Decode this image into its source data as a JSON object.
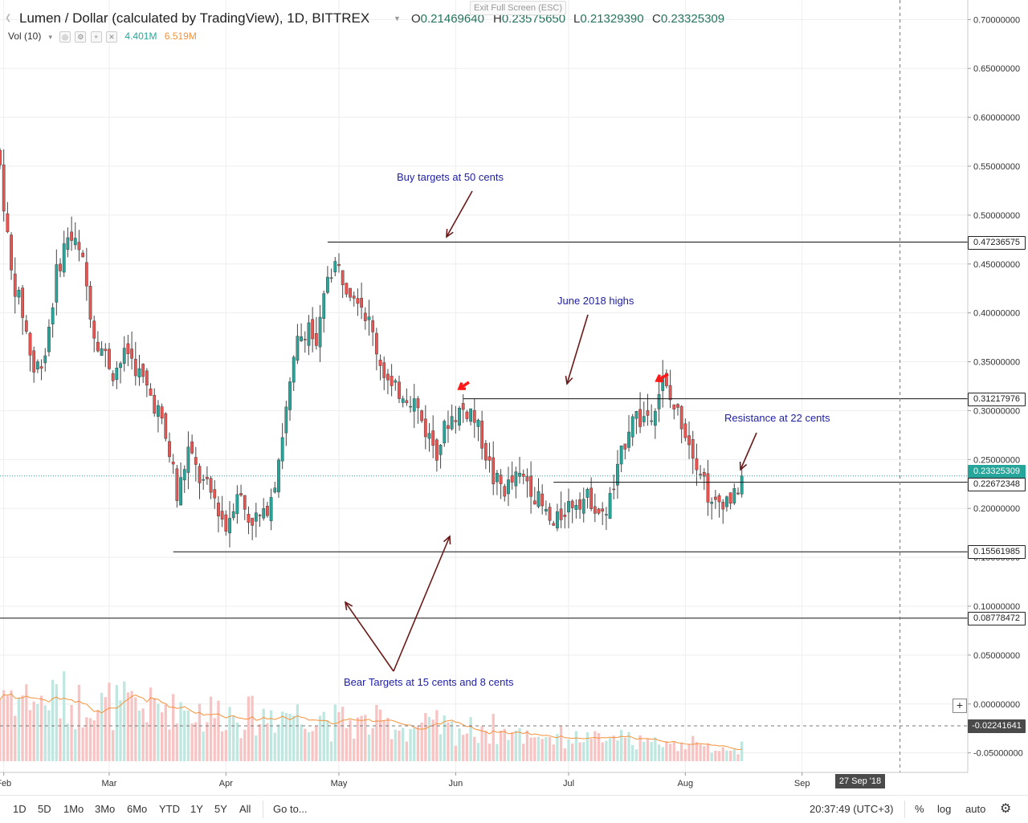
{
  "header": {
    "title": "Lumen / Dollar (calculated by TradingView), 1D, BITTREX",
    "ohlc": [
      {
        "k": "O",
        "v": "0.21469640"
      },
      {
        "k": "H",
        "v": "0.23575650"
      },
      {
        "k": "L",
        "v": "0.21329390"
      },
      {
        "k": "C",
        "v": "0.23325309"
      }
    ],
    "vol_label": "Vol (10)",
    "vol_value": "4.401M",
    "vol_ma": "6.519M",
    "exit_fullscreen": "Exit Full Screen (ESC)"
  },
  "colors": {
    "up": "#26a69a",
    "down": "#ef5350",
    "wick": "#444444",
    "annotation": "#1e1ea5",
    "arrow": "#6b1a1a",
    "marker": "#ff1a1a",
    "vol_ma": "#f6923a"
  },
  "price_labels": [
    {
      "value": "0.47236575",
      "bg": "#ffffff",
      "fg": "#222222",
      "border": "#222222"
    },
    {
      "value": "0.31217976",
      "bg": "#ffffff",
      "fg": "#222222",
      "border": "#222222"
    },
    {
      "value": "0.23325309",
      "bg": "#26a69a",
      "fg": "#ffffff",
      "border": "#26a69a"
    },
    {
      "value": "0.22672348",
      "bg": "#ffffff",
      "fg": "#222222",
      "border": "#222222"
    },
    {
      "value": "0.15561985",
      "bg": "#ffffff",
      "fg": "#222222",
      "border": "#222222"
    },
    {
      "value": "0.08778472",
      "bg": "#ffffff",
      "fg": "#222222",
      "border": "#222222"
    },
    {
      "value": "-0.02241641",
      "bg": "#4a4a4a",
      "fg": "#ffffff",
      "border": "#4a4a4a"
    }
  ],
  "annotations": {
    "buy": "Buy targets at 50 cents",
    "june": "June 2018 highs",
    "resistance": "Resistance at 22 cents",
    "bear": "Bear Targets at 15 cents and 8 cents"
  },
  "cursor_date": "27 Sep '18",
  "bottombar": {
    "timeframes": [
      "1D",
      "5D",
      "1Mo",
      "3Mo",
      "6Mo",
      "YTD",
      "1Y",
      "5Y",
      "All"
    ],
    "goto": "Go to...",
    "clock": "20:37:49 (UTC+3)",
    "percent": "%",
    "log": "log",
    "auto": "auto",
    "gear": "gear-icon"
  },
  "chart_data": {
    "type": "candlestick",
    "title": "Lumen / Dollar (calculated by TradingView), 1D, BITTREX",
    "y_axis": {
      "min": -0.07,
      "max": 0.72,
      "ticks": [
        "0.70000000",
        "0.65000000",
        "0.60000000",
        "0.55000000",
        "0.50000000",
        "0.45000000",
        "0.40000000",
        "0.35000000",
        "0.30000000",
        "0.25000000",
        "0.20000000",
        "0.15000000",
        "0.10000000",
        "0.05000000",
        "0.00000000",
        "-0.05000000"
      ],
      "tick_values": [
        0.7,
        0.65,
        0.6,
        0.55,
        0.5,
        0.45,
        0.4,
        0.35,
        0.3,
        0.25,
        0.2,
        0.15,
        0.1,
        0.05,
        0.0,
        -0.05
      ]
    },
    "x_axis": {
      "labels": [
        "Feb",
        "Mar",
        "Apr",
        "May",
        "Jun",
        "Jul",
        "Aug",
        "Sep"
      ],
      "label_dates": [
        "2018-02-01",
        "2018-03-01",
        "2018-04-01",
        "2018-05-01",
        "2018-06-01",
        "2018-07-01",
        "2018-08-01",
        "2018-09-01"
      ],
      "start": "2018-01-31",
      "end": "2018-10-15"
    },
    "grid": true,
    "horizontal_lines": [
      {
        "price": 0.47236575,
        "from": "2018-04-28"
      },
      {
        "price": 0.31217976,
        "from": "2018-06-03"
      },
      {
        "price": 0.22672348,
        "from": "2018-06-27"
      },
      {
        "price": 0.15561985,
        "from": "2018-03-18"
      },
      {
        "price": 0.08778472,
        "from": "2018-01-31"
      }
    ],
    "last_price_line": 0.23325309,
    "crosshair": {
      "price": -0.02241641,
      "date": "2018-09-27"
    },
    "close_anchors": [
      {
        "date": "2018-01-31",
        "close": 0.55
      },
      {
        "date": "2018-02-03",
        "close": 0.44
      },
      {
        "date": "2018-02-06",
        "close": 0.4
      },
      {
        "date": "2018-02-09",
        "close": 0.34
      },
      {
        "date": "2018-02-12",
        "close": 0.36
      },
      {
        "date": "2018-02-15",
        "close": 0.44
      },
      {
        "date": "2018-02-18",
        "close": 0.48
      },
      {
        "date": "2018-02-20",
        "close": 0.47
      },
      {
        "date": "2018-02-22",
        "close": 0.45
      },
      {
        "date": "2018-02-25",
        "close": 0.38
      },
      {
        "date": "2018-03-02",
        "close": 0.34
      },
      {
        "date": "2018-03-06",
        "close": 0.36
      },
      {
        "date": "2018-03-10",
        "close": 0.33
      },
      {
        "date": "2018-03-14",
        "close": 0.3
      },
      {
        "date": "2018-03-18",
        "close": 0.24
      },
      {
        "date": "2018-03-19",
        "close": 0.21
      },
      {
        "date": "2018-03-22",
        "close": 0.26
      },
      {
        "date": "2018-03-25",
        "close": 0.23
      },
      {
        "date": "2018-03-29",
        "close": 0.21
      },
      {
        "date": "2018-04-01",
        "close": 0.18
      },
      {
        "date": "2018-04-04",
        "close": 0.22
      },
      {
        "date": "2018-04-07",
        "close": 0.19
      },
      {
        "date": "2018-04-11",
        "close": 0.19
      },
      {
        "date": "2018-04-14",
        "close": 0.23
      },
      {
        "date": "2018-04-17",
        "close": 0.3
      },
      {
        "date": "2018-04-20",
        "close": 0.37
      },
      {
        "date": "2018-04-23",
        "close": 0.39
      },
      {
        "date": "2018-04-25",
        "close": 0.36
      },
      {
        "date": "2018-04-28",
        "close": 0.44
      },
      {
        "date": "2018-04-30",
        "close": 0.45
      },
      {
        "date": "2018-05-03",
        "close": 0.43
      },
      {
        "date": "2018-05-06",
        "close": 0.42
      },
      {
        "date": "2018-05-09",
        "close": 0.39
      },
      {
        "date": "2018-05-12",
        "close": 0.35
      },
      {
        "date": "2018-05-15",
        "close": 0.32
      },
      {
        "date": "2018-05-18",
        "close": 0.32
      },
      {
        "date": "2018-05-21",
        "close": 0.31
      },
      {
        "date": "2018-05-24",
        "close": 0.28
      },
      {
        "date": "2018-05-27",
        "close": 0.26
      },
      {
        "date": "2018-05-30",
        "close": 0.29
      },
      {
        "date": "2018-06-02",
        "close": 0.3
      },
      {
        "date": "2018-06-05",
        "close": 0.3
      },
      {
        "date": "2018-06-08",
        "close": 0.27
      },
      {
        "date": "2018-06-11",
        "close": 0.23
      },
      {
        "date": "2018-06-14",
        "close": 0.22
      },
      {
        "date": "2018-06-17",
        "close": 0.23
      },
      {
        "date": "2018-06-20",
        "close": 0.23
      },
      {
        "date": "2018-06-24",
        "close": 0.2
      },
      {
        "date": "2018-06-27",
        "close": 0.18
      },
      {
        "date": "2018-06-30",
        "close": 0.2
      },
      {
        "date": "2018-07-03",
        "close": 0.21
      },
      {
        "date": "2018-07-07",
        "close": 0.21
      },
      {
        "date": "2018-07-10",
        "close": 0.19
      },
      {
        "date": "2018-07-13",
        "close": 0.22
      },
      {
        "date": "2018-07-16",
        "close": 0.27
      },
      {
        "date": "2018-07-18",
        "close": 0.3
      },
      {
        "date": "2018-07-20",
        "close": 0.29
      },
      {
        "date": "2018-07-23",
        "close": 0.3
      },
      {
        "date": "2018-07-26",
        "close": 0.33
      },
      {
        "date": "2018-07-28",
        "close": 0.31
      },
      {
        "date": "2018-07-31",
        "close": 0.29
      },
      {
        "date": "2018-08-03",
        "close": 0.26
      },
      {
        "date": "2018-08-06",
        "close": 0.23
      },
      {
        "date": "2018-08-08",
        "close": 0.2
      },
      {
        "date": "2018-08-11",
        "close": 0.21
      },
      {
        "date": "2018-08-14",
        "close": 0.21
      },
      {
        "date": "2018-08-16",
        "close": 0.2333
      }
    ]
  }
}
